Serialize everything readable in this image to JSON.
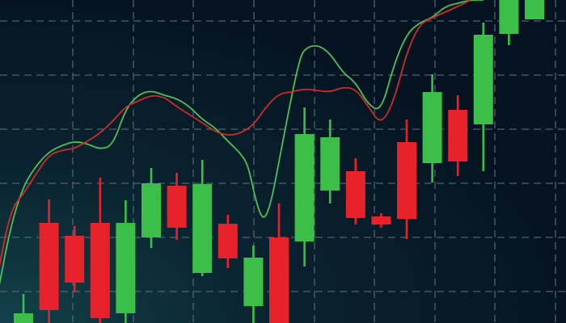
{
  "chart_data": {
    "type": "candlestick",
    "title": "",
    "xlabel": "",
    "ylabel": "",
    "ylim": [
      0,
      400
    ],
    "grid": true,
    "colors": {
      "background_glow": "#12414a",
      "background": "#061422",
      "grid": "#5c6f7c",
      "up": "#3bbf48",
      "down": "#e8222a",
      "line_green": "#4fbf55",
      "line_red": "#cf2c28"
    },
    "candles": [
      {
        "x": 1,
        "open": 0,
        "high": 36,
        "low": 0,
        "close": 12
      },
      {
        "x": 2,
        "open": 124,
        "high": 153,
        "low": 0,
        "close": 16
      },
      {
        "x": 3,
        "open": 108,
        "high": 120,
        "low": 38,
        "close": 50
      },
      {
        "x": 4,
        "open": 124,
        "high": 180,
        "low": 0,
        "close": 6
      },
      {
        "x": 5,
        "open": 12,
        "high": 152,
        "low": 0,
        "close": 124
      },
      {
        "x": 6,
        "open": 106,
        "high": 192,
        "low": 93,
        "close": 173
      },
      {
        "x": 7,
        "open": 170,
        "high": 186,
        "low": 103,
        "close": 118
      },
      {
        "x": 8,
        "open": 62,
        "high": 202,
        "low": 58,
        "close": 172
      },
      {
        "x": 9,
        "open": 123,
        "high": 134,
        "low": 68,
        "close": 80
      },
      {
        "x": 10,
        "open": 21,
        "high": 96,
        "low": 0,
        "close": 81
      },
      {
        "x": 11,
        "open": 106,
        "high": 148,
        "low": 0,
        "close": 0
      },
      {
        "x": 12,
        "open": 101,
        "high": 267,
        "low": 70,
        "close": 234
      },
      {
        "x": 13,
        "open": 164,
        "high": 252,
        "low": 148,
        "close": 230
      },
      {
        "x": 14,
        "open": 188,
        "high": 204,
        "low": 122,
        "close": 130
      },
      {
        "x": 15,
        "open": 132,
        "high": 136,
        "low": 118,
        "close": 122
      },
      {
        "x": 16,
        "open": 224,
        "high": 252,
        "low": 104,
        "close": 129
      },
      {
        "x": 17,
        "open": 198,
        "high": 308,
        "low": 174,
        "close": 286
      },
      {
        "x": 18,
        "open": 264,
        "high": 282,
        "low": 182,
        "close": 200
      },
      {
        "x": 19,
        "open": 246,
        "high": 372,
        "low": 188,
        "close": 357
      },
      {
        "x": 20,
        "open": 358,
        "high": 400,
        "low": 344,
        "close": 400
      },
      {
        "x": 21,
        "open": 376,
        "high": 400,
        "low": 376,
        "close": 400
      }
    ],
    "series": [
      {
        "color_key": "line_green",
        "points": [
          [
            0,
            38
          ],
          [
            0.5,
            120
          ],
          [
            1,
            170
          ],
          [
            1.5,
            195
          ],
          [
            2,
            212
          ],
          [
            2.5,
            220
          ],
          [
            3,
            225
          ],
          [
            3.5,
            222
          ],
          [
            4,
            215
          ],
          [
            4.5,
            220
          ],
          [
            5,
            265
          ],
          [
            5.5,
            283
          ],
          [
            6,
            288
          ],
          [
            6.5,
            282
          ],
          [
            7,
            278
          ],
          [
            7.5,
            268
          ],
          [
            8,
            252
          ],
          [
            8.5,
            242
          ],
          [
            9,
            225
          ],
          [
            9.5,
            210
          ],
          [
            9.8,
            195
          ],
          [
            10.1,
            150
          ],
          [
            10.4,
            125
          ],
          [
            10.7,
            150
          ],
          [
            11,
            200
          ],
          [
            11.5,
            282
          ],
          [
            11.8,
            325
          ],
          [
            12,
            340
          ],
          [
            12.5,
            345
          ],
          [
            13,
            334
          ],
          [
            13.5,
            310
          ],
          [
            14,
            298
          ],
          [
            14.5,
            270
          ],
          [
            15,
            262
          ],
          [
            15.5,
            320
          ],
          [
            16,
            358
          ],
          [
            16.5,
            372
          ],
          [
            17,
            378
          ],
          [
            17.5,
            392
          ],
          [
            18,
            396
          ],
          [
            18.5,
            400
          ],
          [
            19,
            400
          ]
        ]
      },
      {
        "color_key": "line_red",
        "points": [
          [
            0,
            62
          ],
          [
            0.5,
            140
          ],
          [
            1,
            160
          ],
          [
            1.5,
            185
          ],
          [
            2,
            208
          ],
          [
            2.5,
            214
          ],
          [
            3,
            216
          ],
          [
            3.5,
            225
          ],
          [
            4,
            235
          ],
          [
            4.5,
            250
          ],
          [
            5,
            268
          ],
          [
            5.5,
            275
          ],
          [
            6,
            282
          ],
          [
            6.5,
            280
          ],
          [
            7,
            268
          ],
          [
            7.5,
            258
          ],
          [
            8,
            248
          ],
          [
            8.5,
            237
          ],
          [
            9,
            232
          ],
          [
            9.5,
            235
          ],
          [
            10,
            245
          ],
          [
            10.5,
            268
          ],
          [
            11,
            284
          ],
          [
            11.5,
            286
          ],
          [
            12,
            290
          ],
          [
            12.5,
            288
          ],
          [
            13,
            286
          ],
          [
            13.5,
            292
          ],
          [
            14,
            290
          ],
          [
            14.5,
            268
          ],
          [
            15,
            245
          ],
          [
            15.5,
            275
          ],
          [
            16,
            335
          ],
          [
            16.5,
            370
          ],
          [
            17,
            378
          ],
          [
            17.5,
            385
          ],
          [
            18,
            392
          ],
          [
            18.5,
            400
          ]
        ]
      }
    ]
  }
}
